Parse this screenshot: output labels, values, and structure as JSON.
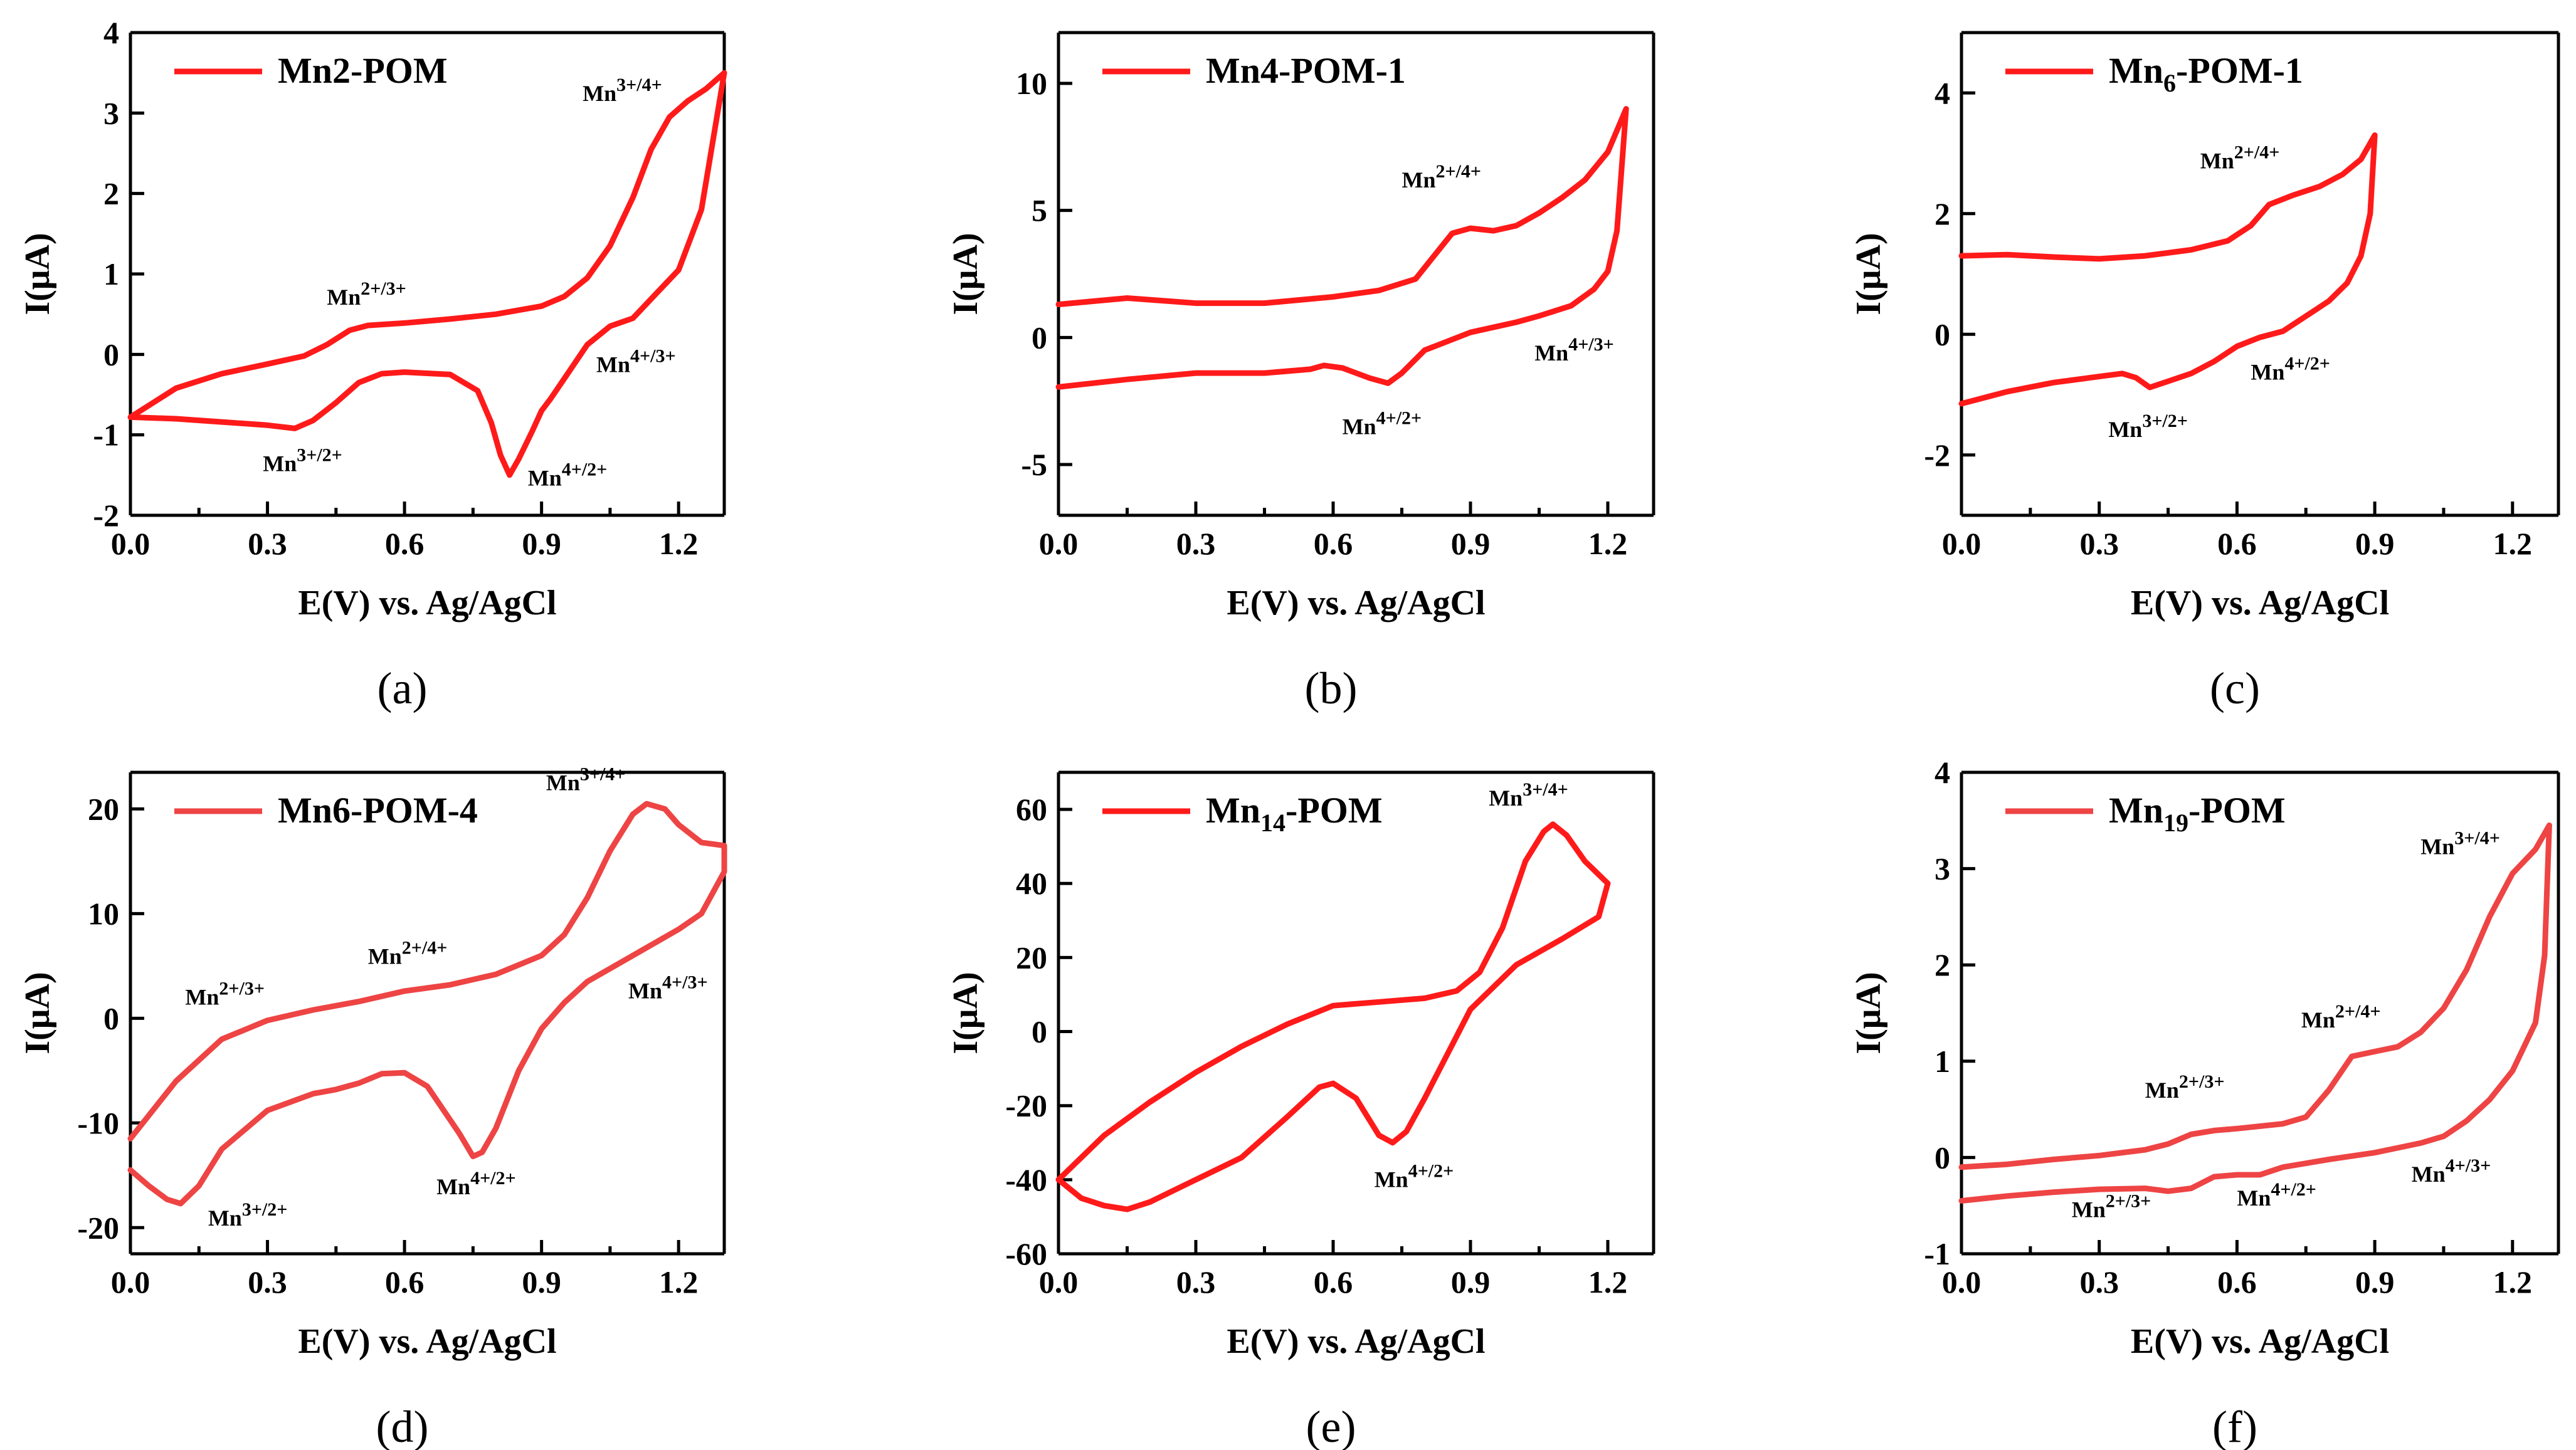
{
  "figure_colors": {
    "bright_red": "#ff1a1a",
    "soft_red": "#ee4444"
  },
  "chart_data": [
    {
      "type": "line",
      "panel_label": "(a)",
      "legend": [
        "Mn",
        "2",
        "-POM"
      ],
      "legend_sub": false,
      "xlabel": "E(V) vs. Ag/AgCl",
      "ylabel": "I(μA)",
      "xlim": [
        0,
        1.3
      ],
      "ylim": [
        -2,
        4
      ],
      "xticks": [
        "0.0",
        "0.3",
        "0.6",
        "0.9",
        "1.2"
      ],
      "xtick_values": [
        0,
        0.3,
        0.6,
        0.9,
        1.2
      ],
      "yticks": [
        "-2",
        "-1",
        "0",
        "1",
        "2",
        "3",
        "4"
      ],
      "ytick_values": [
        -2,
        -1,
        0,
        1,
        2,
        3,
        4
      ],
      "curve": {
        "anodic_x": [
          0.0,
          0.1,
          0.2,
          0.3,
          0.38,
          0.43,
          0.48,
          0.52,
          0.6,
          0.7,
          0.8,
          0.9,
          0.95,
          1.0,
          1.05,
          1.1,
          1.14,
          1.18,
          1.22,
          1.26,
          1.3
        ],
        "anodic_y": [
          -0.78,
          -0.42,
          -0.24,
          -0.12,
          -0.02,
          0.12,
          0.3,
          0.36,
          0.39,
          0.44,
          0.5,
          0.6,
          0.72,
          0.95,
          1.35,
          1.95,
          2.55,
          2.95,
          3.15,
          3.3,
          3.5
        ],
        "cathodic_x": [
          1.3,
          1.25,
          1.2,
          1.15,
          1.1,
          1.05,
          1.0,
          0.95,
          0.92,
          0.9,
          0.88,
          0.85,
          0.83,
          0.81,
          0.79,
          0.76,
          0.7,
          0.6,
          0.55,
          0.5,
          0.45,
          0.4,
          0.36,
          0.3,
          0.2,
          0.1,
          0.0
        ],
        "cathodic_y": [
          3.5,
          1.8,
          1.05,
          0.75,
          0.45,
          0.35,
          0.12,
          -0.3,
          -0.55,
          -0.7,
          -0.95,
          -1.3,
          -1.5,
          -1.25,
          -0.85,
          -0.45,
          -0.25,
          -0.22,
          -0.24,
          -0.35,
          -0.6,
          -0.82,
          -0.92,
          -0.88,
          -0.84,
          -0.8,
          -0.78
        ]
      },
      "annotations": [
        {
          "base": "Mn",
          "sup": "3+/4+",
          "x": 0.99,
          "y": 3.15
        },
        {
          "base": "Mn",
          "sup": "2+/3+",
          "x": 0.43,
          "y": 0.62
        },
        {
          "base": "Mn",
          "sup": "4+/3+",
          "x": 1.02,
          "y": -0.22
        },
        {
          "base": "Mn",
          "sup": "3+/2+",
          "x": 0.29,
          "y": -1.45
        },
        {
          "base": "Mn",
          "sup": "4+/2+",
          "x": 0.87,
          "y": -1.63
        }
      ]
    },
    {
      "type": "line",
      "panel_label": "(b)",
      "legend": [
        "Mn",
        "4",
        "-POM-1"
      ],
      "legend_sub": false,
      "xlabel": "E(V) vs. Ag/AgCl",
      "ylabel": "I(μA)",
      "xlim": [
        0,
        1.3
      ],
      "ylim": [
        -7,
        12
      ],
      "xticks": [
        "0.0",
        "0.3",
        "0.6",
        "0.9",
        "1.2"
      ],
      "xtick_values": [
        0,
        0.3,
        0.6,
        0.9,
        1.2
      ],
      "yticks": [
        "-5",
        "0",
        "5",
        "10"
      ],
      "ytick_values": [
        -5,
        0,
        5,
        10
      ],
      "curve": {
        "anodic_x": [
          0.0,
          0.15,
          0.3,
          0.45,
          0.6,
          0.7,
          0.78,
          0.82,
          0.86,
          0.9,
          0.95,
          1.0,
          1.05,
          1.1,
          1.15,
          1.2,
          1.24
        ],
        "anodic_y": [
          1.3,
          1.55,
          1.35,
          1.35,
          1.6,
          1.85,
          2.3,
          3.2,
          4.1,
          4.3,
          4.2,
          4.4,
          4.9,
          5.5,
          6.2,
          7.3,
          9.0
        ],
        "cathodic_x": [
          1.24,
          1.22,
          1.2,
          1.17,
          1.12,
          1.05,
          1.0,
          0.9,
          0.8,
          0.75,
          0.72,
          0.68,
          0.62,
          0.58,
          0.55,
          0.45,
          0.3,
          0.15,
          0.0
        ],
        "cathodic_y": [
          9.0,
          4.2,
          2.6,
          1.9,
          1.25,
          0.85,
          0.6,
          0.2,
          -0.5,
          -1.4,
          -1.8,
          -1.6,
          -1.2,
          -1.1,
          -1.25,
          -1.4,
          -1.4,
          -1.65,
          -1.95
        ]
      },
      "annotations": [
        {
          "base": "Mn",
          "sup": "2+/4+",
          "x": 0.75,
          "y": 5.9
        },
        {
          "base": "Mn",
          "sup": "4+/3+",
          "x": 1.04,
          "y": -0.9
        },
        {
          "base": "Mn",
          "sup": "4+/2+",
          "x": 0.62,
          "y": -3.8
        }
      ]
    },
    {
      "type": "line",
      "panel_label": "(c)",
      "legend": [
        "Mn",
        "6",
        "-POM-1"
      ],
      "legend_sub": true,
      "xlabel": "E(V) vs. Ag/AgCl",
      "ylabel": "I(μA)",
      "xlim": [
        0,
        1.3
      ],
      "ylim": [
        -3,
        5
      ],
      "xticks": [
        "0.0",
        "0.3",
        "0.6",
        "0.9",
        "1.2"
      ],
      "xtick_values": [
        0,
        0.3,
        0.6,
        0.9,
        1.2
      ],
      "yticks": [
        "-2",
        "0",
        "2",
        "4"
      ],
      "ytick_values": [
        -2,
        0,
        2,
        4
      ],
      "curve": {
        "anodic_x": [
          0.0,
          0.1,
          0.2,
          0.3,
          0.4,
          0.5,
          0.58,
          0.63,
          0.67,
          0.72,
          0.78,
          0.83,
          0.87,
          0.9
        ],
        "anodic_y": [
          1.3,
          1.32,
          1.28,
          1.25,
          1.3,
          1.4,
          1.55,
          1.8,
          2.15,
          2.3,
          2.45,
          2.65,
          2.9,
          3.3
        ],
        "cathodic_x": [
          0.9,
          0.89,
          0.87,
          0.84,
          0.8,
          0.75,
          0.7,
          0.65,
          0.6,
          0.55,
          0.5,
          0.45,
          0.41,
          0.38,
          0.35,
          0.3,
          0.2,
          0.1,
          0.0
        ],
        "cathodic_y": [
          3.3,
          2.0,
          1.3,
          0.85,
          0.55,
          0.3,
          0.05,
          -0.05,
          -0.2,
          -0.45,
          -0.65,
          -0.78,
          -0.88,
          -0.72,
          -0.65,
          -0.7,
          -0.8,
          -0.95,
          -1.15
        ]
      },
      "annotations": [
        {
          "base": "Mn",
          "sup": "2+/4+",
          "x": 0.52,
          "y": 2.75
        },
        {
          "base": "Mn",
          "sup": "4+/2+",
          "x": 0.63,
          "y": -0.75
        },
        {
          "base": "Mn",
          "sup": "3+/2+",
          "x": 0.32,
          "y": -1.7
        }
      ]
    },
    {
      "type": "line",
      "panel_label": "(d)",
      "legend": [
        "Mn",
        "6",
        "-POM-4"
      ],
      "legend_sub": false,
      "xlabel": "E(V) vs. Ag/AgCl",
      "ylabel": "I(μA)",
      "xlim": [
        0,
        1.3
      ],
      "ylim": [
        -22.5,
        23.5
      ],
      "xticks": [
        "0.0",
        "0.3",
        "0.6",
        "0.9",
        "1.2"
      ],
      "xtick_values": [
        0,
        0.3,
        0.6,
        0.9,
        1.2
      ],
      "yticks": [
        "-20",
        "-10",
        "0",
        "10",
        "20"
      ],
      "ytick_values": [
        -20,
        -10,
        0,
        10,
        20
      ],
      "curve": {
        "anodic_x": [
          0.0,
          0.1,
          0.2,
          0.3,
          0.4,
          0.5,
          0.6,
          0.7,
          0.8,
          0.9,
          0.95,
          1.0,
          1.05,
          1.1,
          1.13,
          1.17,
          1.2,
          1.25,
          1.3
        ],
        "anodic_y": [
          -11.5,
          -6.0,
          -2.0,
          -0.2,
          0.8,
          1.6,
          2.6,
          3.2,
          4.2,
          6.0,
          8.0,
          11.5,
          16.0,
          19.5,
          20.5,
          20.0,
          18.5,
          16.8,
          16.5
        ],
        "cathodic_x": [
          1.3,
          1.25,
          1.2,
          1.1,
          1.0,
          0.95,
          0.9,
          0.85,
          0.8,
          0.77,
          0.75,
          0.72,
          0.65,
          0.6,
          0.55,
          0.5,
          0.45,
          0.4,
          0.3,
          0.2,
          0.15,
          0.11,
          0.08,
          0.04,
          0.0
        ],
        "cathodic_y": [
          14.0,
          10.0,
          8.5,
          6.0,
          3.5,
          1.5,
          -1.0,
          -5.0,
          -10.5,
          -12.8,
          -13.2,
          -11.0,
          -6.5,
          -5.2,
          -5.3,
          -6.2,
          -6.8,
          -7.2,
          -8.8,
          -12.5,
          -16.0,
          -17.7,
          -17.3,
          -16.0,
          -14.5
        ]
      },
      "annotations": [
        {
          "base": "Mn",
          "sup": "3+/4+",
          "x": 0.91,
          "y": 21.8
        },
        {
          "base": "Mn",
          "sup": "2+/4+",
          "x": 0.52,
          "y": 5.2
        },
        {
          "base": "Mn",
          "sup": "2+/3+",
          "x": 0.12,
          "y": 1.3
        },
        {
          "base": "Mn",
          "sup": "4+/3+",
          "x": 1.09,
          "y": 1.9
        },
        {
          "base": "Mn",
          "sup": "4+/2+",
          "x": 0.67,
          "y": -16.8
        },
        {
          "base": "Mn",
          "sup": "3+/2+",
          "x": 0.17,
          "y": -19.8
        }
      ]
    },
    {
      "type": "line",
      "panel_label": "(e)",
      "legend": [
        "Mn",
        "14",
        "-POM"
      ],
      "legend_sub": true,
      "xlabel": "E(V) vs. Ag/AgCl",
      "ylabel": "I(μA)",
      "xlim": [
        0,
        1.3
      ],
      "ylim": [
        -60,
        70
      ],
      "xticks": [
        "0.0",
        "0.3",
        "0.6",
        "0.9",
        "1.2"
      ],
      "xtick_values": [
        0,
        0.3,
        0.6,
        0.9,
        1.2
      ],
      "yticks": [
        "-60",
        "-40",
        "-20",
        "0",
        "20",
        "40",
        "60"
      ],
      "ytick_values": [
        -60,
        -40,
        -20,
        0,
        20,
        40,
        60
      ],
      "curve": {
        "anodic_x": [
          0.0,
          0.05,
          0.1,
          0.2,
          0.3,
          0.4,
          0.5,
          0.6,
          0.7,
          0.8,
          0.87,
          0.92,
          0.97,
          1.02,
          1.06,
          1.08,
          1.11,
          1.15,
          1.2
        ],
        "anodic_y": [
          -40,
          -34,
          -28,
          -19,
          -11,
          -4,
          2,
          7,
          8,
          9,
          11,
          16,
          28,
          46,
          54,
          56,
          53,
          46,
          40
        ],
        "cathodic_x": [
          1.2,
          1.18,
          1.1,
          1.0,
          0.9,
          0.85,
          0.8,
          0.76,
          0.73,
          0.7,
          0.65,
          0.6,
          0.57,
          0.5,
          0.4,
          0.3,
          0.2,
          0.15,
          0.1,
          0.05,
          0.0
        ],
        "cathodic_y": [
          40,
          31,
          25,
          18,
          6,
          -6,
          -18,
          -27,
          -30,
          -28,
          -18,
          -14,
          -15,
          -23,
          -34,
          -40,
          -46,
          -48,
          -47,
          -45,
          -40
        ]
      },
      "annotations": [
        {
          "base": "Mn",
          "sup": "3+/4+",
          "x": 0.94,
          "y": 61
        },
        {
          "base": "Mn",
          "sup": "4+/2+",
          "x": 0.69,
          "y": -42
        }
      ]
    },
    {
      "type": "line",
      "panel_label": "(f)",
      "legend": [
        "Mn",
        "19",
        "-POM"
      ],
      "legend_sub": true,
      "xlabel": "E(V) vs. Ag/AgCl",
      "ylabel": "I(μA)",
      "xlim": [
        0,
        1.3
      ],
      "ylim": [
        -1,
        4
      ],
      "xticks": [
        "0.0",
        "0.3",
        "0.6",
        "0.9",
        "1.2"
      ],
      "xtick_values": [
        0,
        0.3,
        0.6,
        0.9,
        1.2
      ],
      "yticks": [
        "-1",
        "0",
        "1",
        "2",
        "3",
        "4"
      ],
      "ytick_values": [
        -1,
        0,
        1,
        2,
        3,
        4
      ],
      "curve": {
        "anodic_x": [
          0.0,
          0.1,
          0.2,
          0.3,
          0.4,
          0.45,
          0.5,
          0.55,
          0.6,
          0.7,
          0.75,
          0.8,
          0.85,
          0.9,
          0.95,
          1.0,
          1.05,
          1.1,
          1.15,
          1.2,
          1.25,
          1.28
        ],
        "anodic_y": [
          -0.1,
          -0.07,
          -0.02,
          0.02,
          0.08,
          0.14,
          0.24,
          0.28,
          0.3,
          0.35,
          0.42,
          0.7,
          1.05,
          1.1,
          1.15,
          1.3,
          1.55,
          1.95,
          2.5,
          2.95,
          3.2,
          3.45
        ],
        "cathodic_x": [
          1.28,
          1.27,
          1.25,
          1.2,
          1.15,
          1.1,
          1.05,
          1.0,
          0.9,
          0.8,
          0.7,
          0.65,
          0.6,
          0.55,
          0.5,
          0.45,
          0.4,
          0.3,
          0.2,
          0.1,
          0.0
        ],
        "cathodic_y": [
          3.45,
          2.1,
          1.4,
          0.9,
          0.6,
          0.38,
          0.22,
          0.15,
          0.05,
          -0.02,
          -0.1,
          -0.18,
          -0.18,
          -0.2,
          -0.32,
          -0.35,
          -0.32,
          -0.33,
          -0.36,
          -0.4,
          -0.45
        ]
      },
      "annotations": [
        {
          "base": "Mn",
          "sup": "3+/4+",
          "x": 1.0,
          "y": 3.15
        },
        {
          "base": "Mn",
          "sup": "2+/4+",
          "x": 0.74,
          "y": 1.35
        },
        {
          "base": "Mn",
          "sup": "2+/3+",
          "x": 0.4,
          "y": 0.62
        },
        {
          "base": "Mn",
          "sup": "4+/3+",
          "x": 0.98,
          "y": -0.25
        },
        {
          "base": "Mn",
          "sup": "4+/2+",
          "x": 0.6,
          "y": -0.5
        },
        {
          "base": "Mn",
          "sup": "2+/3+",
          "x": 0.24,
          "y": -0.62
        }
      ]
    }
  ]
}
